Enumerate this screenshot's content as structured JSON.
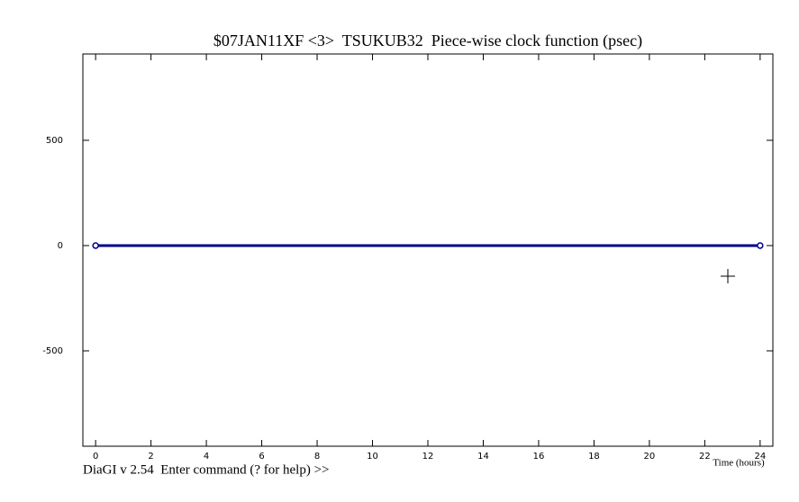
{
  "chart_data": {
    "type": "line",
    "title": "$07JAN11XF <3>  TSUKUB32  Piece-wise clock function (psec)",
    "x_label": "Time (hours)",
    "footer": "DiaGI v 2.54  Enter command (? for help) >>",
    "x": [
      0,
      24
    ],
    "series": [
      {
        "name": "Piece-wise clock function",
        "color": "#00008b",
        "values": [
          0,
          0
        ]
      }
    ],
    "xlim": [
      -0.46,
      24.46
    ],
    "ylim": [
      -953,
      910
    ],
    "xticks": [
      0,
      2,
      4,
      6,
      8,
      10,
      12,
      14,
      16,
      18,
      20,
      22,
      24
    ],
    "yticks": [
      -500,
      0,
      500
    ]
  }
}
